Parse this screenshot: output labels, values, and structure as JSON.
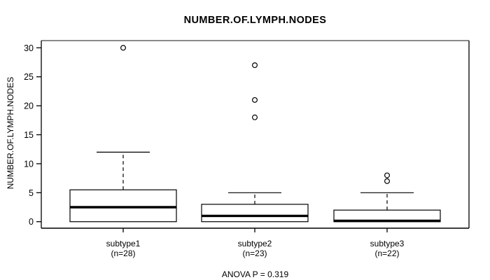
{
  "chart_data": {
    "type": "boxplot",
    "title": "NUMBER.OF.LYMPH.NODES",
    "ylabel": "NUMBER.OF.LYMPH.NODES",
    "xlabel": "",
    "annotation": "ANOVA P = 0.319",
    "ylim": [
      -1.2,
      31.2
    ],
    "yticks": [
      0,
      5,
      10,
      15,
      20,
      25,
      30
    ],
    "grid": false,
    "legend": false,
    "frame_color": "#000000",
    "box_fill": "#ffffff",
    "groups": [
      {
        "label": "subtype1",
        "sublabel": "(n=28)",
        "n": 28,
        "whisker_low": 0,
        "q1": 0,
        "median": 2.5,
        "q3": 5.5,
        "whisker_high": 12,
        "outliers": [
          30
        ]
      },
      {
        "label": "subtype2",
        "sublabel": "(n=23)",
        "n": 23,
        "whisker_low": 0,
        "q1": 0,
        "median": 1,
        "q3": 3,
        "whisker_high": 5,
        "outliers": [
          18,
          21,
          27
        ]
      },
      {
        "label": "subtype3",
        "sublabel": "(n=22)",
        "n": 22,
        "whisker_low": 0,
        "q1": 0,
        "median": 0,
        "q3": 2,
        "whisker_high": 5,
        "outliers": [
          7,
          8
        ]
      }
    ]
  }
}
